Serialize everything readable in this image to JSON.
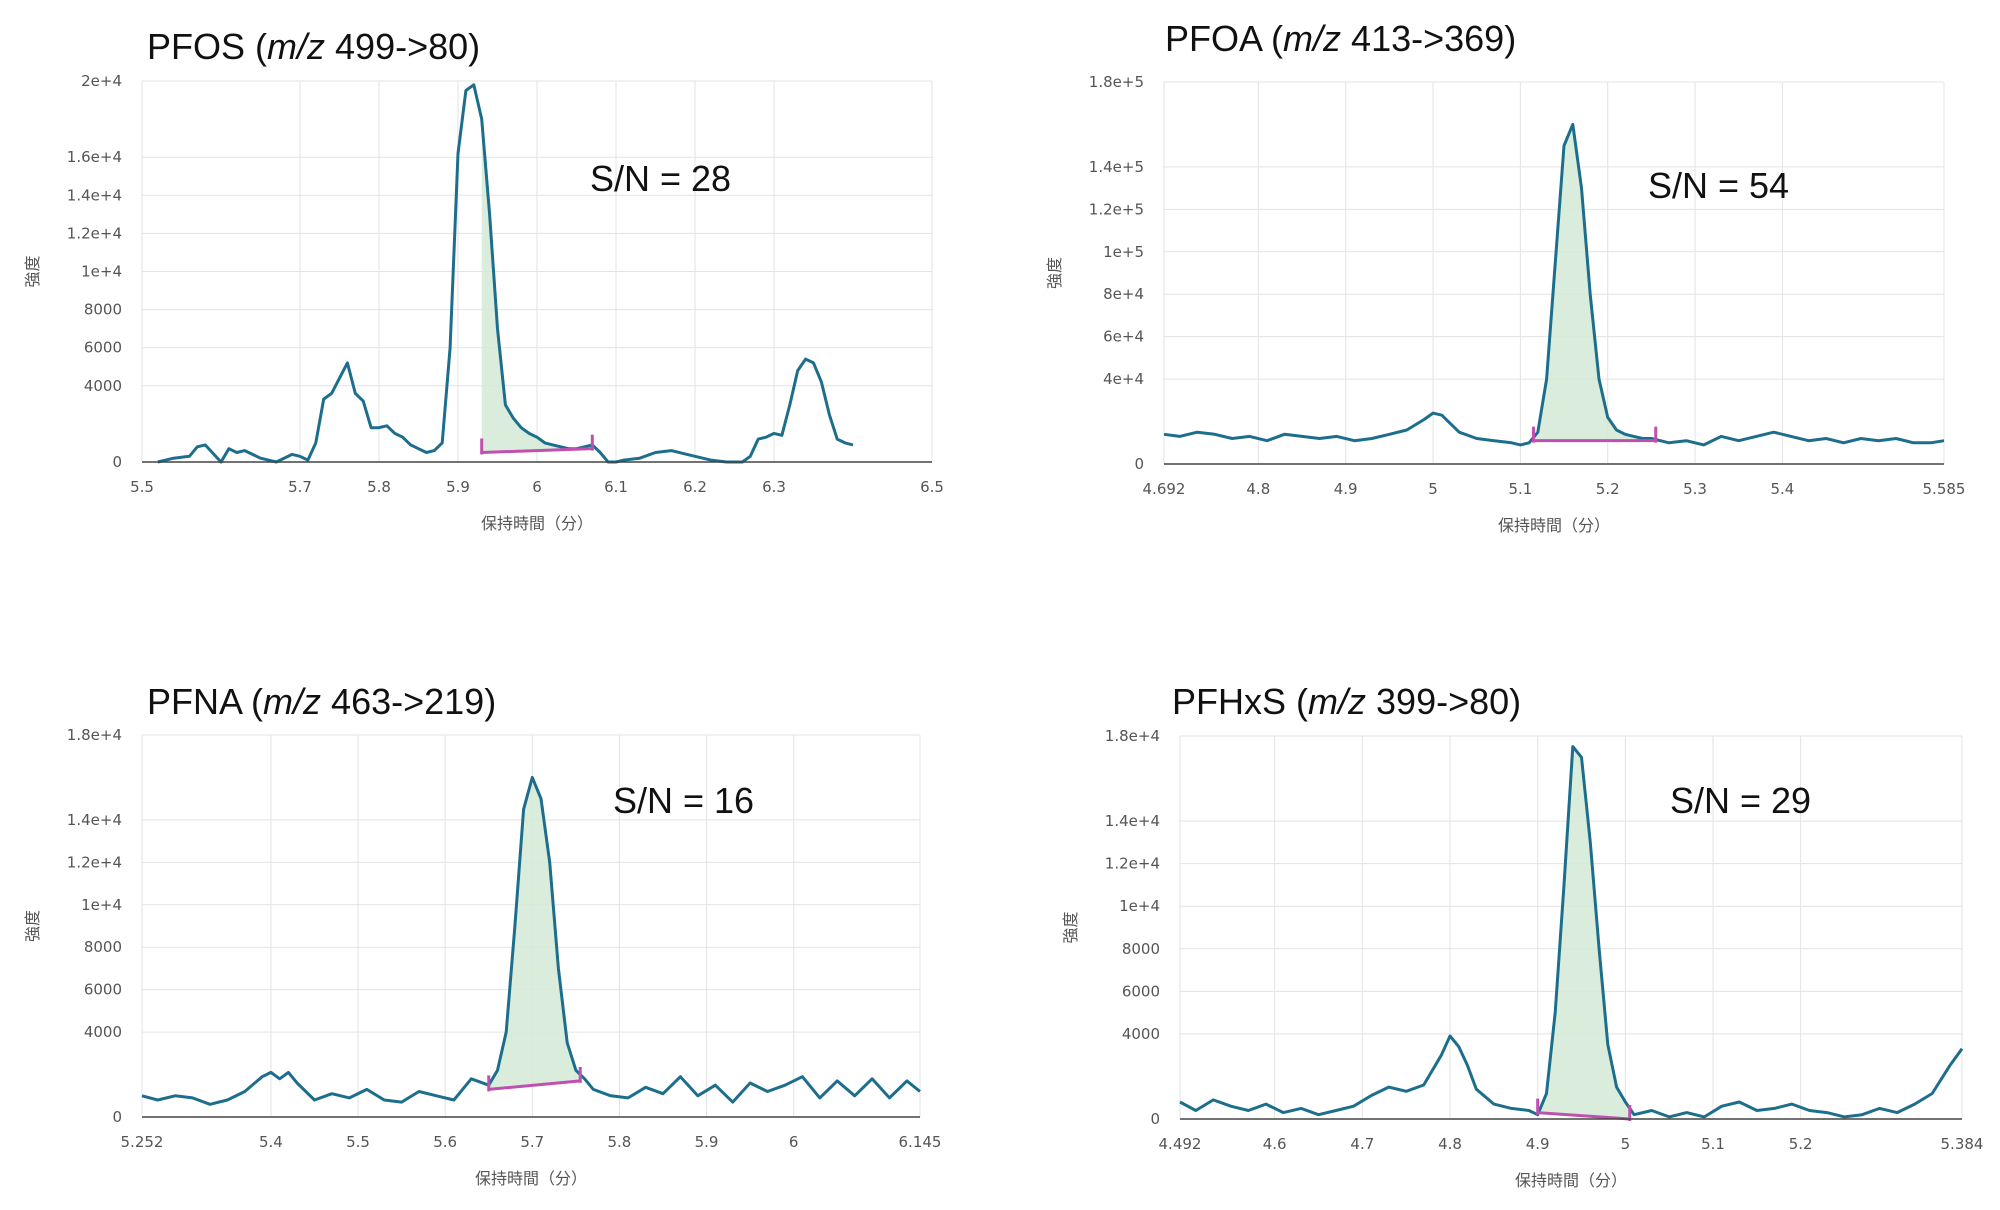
{
  "chart_data": [
    {
      "type": "line",
      "title": {
        "compound": "PFOS",
        "mz_label": "m/z",
        "transition": "499->80"
      },
      "xlabel": "保持時間（分）",
      "ylabel": "強度",
      "annotation": "S/N = 28",
      "xlim": [
        5.5,
        6.5
      ],
      "ylim": [
        0,
        20000
      ],
      "xticks": [
        5.5,
        5.7,
        5.8,
        5.9,
        6,
        6.1,
        6.2,
        6.3,
        6.5
      ],
      "xtick_labels": [
        "5.5",
        "5.7",
        "5.8",
        "5.9",
        "6",
        "6.1",
        "6.2",
        "6.3",
        "6.5"
      ],
      "yticks": [
        0,
        4000,
        6000,
        8000,
        10000,
        12000,
        14000,
        16000,
        20000
      ],
      "ytick_labels": [
        "0",
        "4000",
        "6000",
        "8000",
        "1e+4",
        "1.2e+4",
        "1.4e+4",
        "1.6e+4",
        "2e+4"
      ],
      "grid": true,
      "peak": {
        "start": 5.93,
        "end": 6.07,
        "baseline_start": 500,
        "baseline_end": 700
      },
      "x": [
        5.52,
        5.54,
        5.56,
        5.57,
        5.58,
        5.6,
        5.61,
        5.62,
        5.63,
        5.65,
        5.66,
        5.67,
        5.69,
        5.7,
        5.71,
        5.72,
        5.73,
        5.74,
        5.76,
        5.77,
        5.78,
        5.79,
        5.8,
        5.81,
        5.82,
        5.83,
        5.84,
        5.85,
        5.86,
        5.87,
        5.88,
        5.89,
        5.9,
        5.91,
        5.92,
        5.93,
        5.94,
        5.95,
        5.96,
        5.97,
        5.98,
        5.99,
        6,
        6.01,
        6.02,
        6.03,
        6.04,
        6.05,
        6.06,
        6.07,
        6.08,
        6.09,
        6.1,
        6.11,
        6.13,
        6.15,
        6.17,
        6.19,
        6.2,
        6.22,
        6.24,
        6.26,
        6.27,
        6.28,
        6.29,
        6.3,
        6.31,
        6.32,
        6.33,
        6.34,
        6.35,
        6.36,
        6.37,
        6.38,
        6.39,
        6.4
      ],
      "y": [
        0,
        200,
        300,
        800,
        900,
        0,
        700,
        500,
        600,
        200,
        100,
        0,
        400,
        300,
        100,
        1000,
        3300,
        3600,
        5200,
        3600,
        3200,
        1800,
        1800,
        1900,
        1500,
        1300,
        900,
        700,
        500,
        600,
        1000,
        6000,
        16200,
        19500,
        19800,
        18000,
        13000,
        7000,
        3000,
        2300,
        1800,
        1500,
        1300,
        1000,
        900,
        800,
        700,
        700,
        800,
        900,
        500,
        0,
        0,
        100,
        200,
        500,
        600,
        400,
        300,
        100,
        0,
        0,
        300,
        1200,
        1300,
        1500,
        1400,
        3000,
        4800,
        5400,
        5200,
        4200,
        2500,
        1200,
        1000,
        900
      ]
    },
    {
      "type": "line",
      "title": {
        "compound": "PFOA",
        "mz_label": "m/z",
        "transition": "413->369"
      },
      "xlabel": "保持時間（分）",
      "ylabel": "強度",
      "annotation": "S/N = 54",
      "xlim": [
        4.692,
        5.585
      ],
      "ylim": [
        0,
        180000
      ],
      "xticks": [
        4.692,
        4.8,
        4.9,
        5,
        5.1,
        5.2,
        5.3,
        5.4,
        5.585
      ],
      "xtick_labels": [
        "4.692",
        "4.8",
        "4.9",
        "5",
        "5.1",
        "5.2",
        "5.3",
        "5.4",
        "5.585"
      ],
      "yticks": [
        0,
        40000,
        60000,
        80000,
        100000,
        120000,
        140000,
        180000
      ],
      "ytick_labels": [
        "0",
        "4e+4",
        "6e+4",
        "8e+4",
        "1e+5",
        "1.2e+5",
        "1.4e+5",
        "1.8e+5"
      ],
      "grid": true,
      "peak": {
        "start": 5.115,
        "end": 5.255,
        "baseline_start": 11000,
        "baseline_end": 11000
      },
      "x": [
        4.692,
        4.71,
        4.73,
        4.75,
        4.77,
        4.79,
        4.81,
        4.83,
        4.85,
        4.87,
        4.89,
        4.91,
        4.93,
        4.95,
        4.97,
        4.99,
        5.0,
        5.01,
        5.03,
        5.05,
        5.07,
        5.09,
        5.1,
        5.11,
        5.12,
        5.13,
        5.14,
        5.15,
        5.16,
        5.17,
        5.18,
        5.19,
        5.2,
        5.21,
        5.22,
        5.23,
        5.24,
        5.25,
        5.27,
        5.29,
        5.31,
        5.33,
        5.35,
        5.37,
        5.39,
        5.41,
        5.43,
        5.45,
        5.47,
        5.49,
        5.51,
        5.53,
        5.55,
        5.57,
        5.585
      ],
      "y": [
        14000,
        13000,
        15000,
        14000,
        12000,
        13000,
        11000,
        14000,
        13000,
        12000,
        13000,
        11000,
        12000,
        14000,
        16000,
        21000,
        24000,
        23000,
        15000,
        12000,
        11000,
        10000,
        9000,
        10000,
        15000,
        40000,
        95000,
        150000,
        160000,
        130000,
        80000,
        40000,
        22000,
        16000,
        14000,
        13000,
        12000,
        12000,
        10000,
        11000,
        9000,
        13000,
        11000,
        13000,
        15000,
        13000,
        11000,
        12000,
        10000,
        12000,
        11000,
        12000,
        10000,
        10000,
        11000
      ]
    },
    {
      "type": "line",
      "title": {
        "compound": "PFNA",
        "mz_label": "m/z",
        "transition": "463->219"
      },
      "xlabel": "保持時間（分）",
      "ylabel": "強度",
      "annotation": "S/N = 16",
      "xlim": [
        5.252,
        6.145
      ],
      "ylim": [
        0,
        18000
      ],
      "xticks": [
        5.252,
        5.4,
        5.5,
        5.6,
        5.7,
        5.8,
        5.9,
        6,
        6.145
      ],
      "xtick_labels": [
        "5.252",
        "5.4",
        "5.5",
        "5.6",
        "5.7",
        "5.8",
        "5.9",
        "6",
        "6.145"
      ],
      "yticks": [
        0,
        4000,
        6000,
        8000,
        10000,
        12000,
        14000,
        18000
      ],
      "ytick_labels": [
        "0",
        "4000",
        "6000",
        "8000",
        "1e+4",
        "1.2e+4",
        "1.4e+4",
        "1.8e+4"
      ],
      "grid": true,
      "peak": {
        "start": 5.65,
        "end": 5.755,
        "baseline_start": 1300,
        "baseline_end": 1700
      },
      "x": [
        5.252,
        5.27,
        5.29,
        5.31,
        5.33,
        5.35,
        5.37,
        5.39,
        5.4,
        5.41,
        5.42,
        5.43,
        5.44,
        5.45,
        5.47,
        5.49,
        5.51,
        5.53,
        5.55,
        5.57,
        5.59,
        5.61,
        5.63,
        5.65,
        5.66,
        5.67,
        5.68,
        5.69,
        5.7,
        5.71,
        5.72,
        5.73,
        5.74,
        5.75,
        5.76,
        5.77,
        5.79,
        5.81,
        5.83,
        5.85,
        5.87,
        5.89,
        5.91,
        5.93,
        5.95,
        5.97,
        5.99,
        6.01,
        6.03,
        6.05,
        6.07,
        6.09,
        6.11,
        6.13,
        6.145
      ],
      "y": [
        1000,
        800,
        1000,
        900,
        600,
        800,
        1200,
        1900,
        2100,
        1800,
        2100,
        1600,
        1200,
        800,
        1100,
        900,
        1300,
        800,
        700,
        1200,
        1000,
        800,
        1800,
        1500,
        2200,
        4000,
        9000,
        14500,
        16000,
        15000,
        12000,
        7000,
        3500,
        2200,
        1800,
        1300,
        1000,
        900,
        1400,
        1100,
        1900,
        1000,
        1500,
        700,
        1600,
        1200,
        1500,
        1900,
        900,
        1700,
        1000,
        1800,
        900,
        1700,
        1200
      ]
    },
    {
      "type": "line",
      "title": {
        "compound": "PFHxS",
        "mz_label": "m/z",
        "transition": "399->80"
      },
      "xlabel": "保持時間（分）",
      "ylabel": "強度",
      "annotation": "S/N = 29",
      "xlim": [
        4.492,
        5.384
      ],
      "ylim": [
        0,
        18000
      ],
      "xticks": [
        4.492,
        4.6,
        4.7,
        4.8,
        4.9,
        5,
        5.1,
        5.2,
        5.384
      ],
      "xtick_labels": [
        "4.492",
        "4.6",
        "4.7",
        "4.8",
        "4.9",
        "5",
        "5.1",
        "5.2",
        "5.384"
      ],
      "yticks": [
        0,
        4000,
        6000,
        8000,
        10000,
        12000,
        14000,
        18000
      ],
      "ytick_labels": [
        "0",
        "4000",
        "6000",
        "8000",
        "1e+4",
        "1.2e+4",
        "1.4e+4",
        "1.8e+4"
      ],
      "grid": true,
      "peak": {
        "start": 4.9,
        "end": 5.005,
        "baseline_start": 300,
        "baseline_end": 0
      },
      "x": [
        4.492,
        4.51,
        4.53,
        4.55,
        4.57,
        4.59,
        4.61,
        4.63,
        4.65,
        4.67,
        4.69,
        4.71,
        4.73,
        4.75,
        4.77,
        4.79,
        4.8,
        4.81,
        4.82,
        4.83,
        4.85,
        4.87,
        4.89,
        4.9,
        4.91,
        4.92,
        4.93,
        4.94,
        4.95,
        4.96,
        4.97,
        4.98,
        4.99,
        5.0,
        5.01,
        5.03,
        5.05,
        5.07,
        5.09,
        5.11,
        5.13,
        5.15,
        5.17,
        5.19,
        5.21,
        5.23,
        5.25,
        5.27,
        5.29,
        5.31,
        5.33,
        5.35,
        5.37,
        5.384
      ],
      "y": [
        800,
        400,
        900,
        600,
        400,
        700,
        300,
        500,
        200,
        400,
        600,
        1100,
        1500,
        1300,
        1600,
        3000,
        3900,
        3400,
        2500,
        1400,
        700,
        500,
        400,
        200,
        1200,
        5000,
        11000,
        17500,
        17000,
        13000,
        8000,
        3500,
        1500,
        800,
        200,
        400,
        100,
        300,
        100,
        600,
        800,
        400,
        500,
        700,
        400,
        300,
        100,
        200,
        500,
        300,
        700,
        1200,
        2500,
        3300
      ]
    }
  ]
}
